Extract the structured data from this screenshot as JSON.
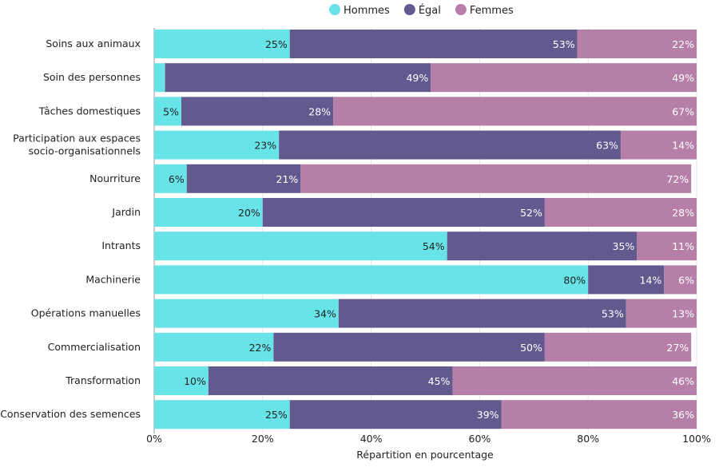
{
  "chart_data": {
    "type": "bar",
    "orientation": "horizontal",
    "stacked": true,
    "title": "",
    "xlabel": "Répartition en pourcentage",
    "ylabel": "",
    "xlim": [
      0,
      100
    ],
    "x_ticks": [
      "0%",
      "20%",
      "40%",
      "60%",
      "80%",
      "100%"
    ],
    "grid": true,
    "legend_position": "top",
    "categories": [
      "Soins aux animaux",
      "Soin des personnes",
      "Tâches domestiques",
      "Participation aux espaces socio-organisationnels",
      "Nourriture",
      "Jardin",
      "Intrants",
      "Machinerie",
      "Opérations manuelles",
      "Commercialisation",
      "Transformation",
      "Conservation des semences"
    ],
    "series": [
      {
        "name": "Hommes",
        "color": "#68E3E8",
        "label_color": "#222222",
        "values": [
          25,
          2,
          5,
          23,
          6,
          20,
          54,
          80,
          34,
          22,
          10,
          25
        ],
        "labels": [
          "25%",
          "",
          "5%",
          "23%",
          "6%",
          "20%",
          "54%",
          "80%",
          "34%",
          "22%",
          "10%",
          "25%"
        ]
      },
      {
        "name": "Égal",
        "color": "#62598F",
        "label_color": "#ffffff",
        "values": [
          53,
          49,
          28,
          63,
          21,
          52,
          35,
          14,
          53,
          50,
          45,
          39
        ],
        "labels": [
          "53%",
          "49%",
          "28%",
          "63%",
          "21%",
          "52%",
          "35%",
          "14%",
          "53%",
          "50%",
          "45%",
          "39%"
        ]
      },
      {
        "name": "Femmes",
        "color": "#B57FA8",
        "label_color": "#ffffff",
        "values": [
          22,
          49,
          67,
          14,
          72,
          28,
          11,
          6,
          13,
          27,
          46,
          36
        ],
        "labels": [
          "22%",
          "49%",
          "67%",
          "14%",
          "72%",
          "28%",
          "11%",
          "6%",
          "13%",
          "27%",
          "46%",
          "36%"
        ]
      }
    ]
  }
}
